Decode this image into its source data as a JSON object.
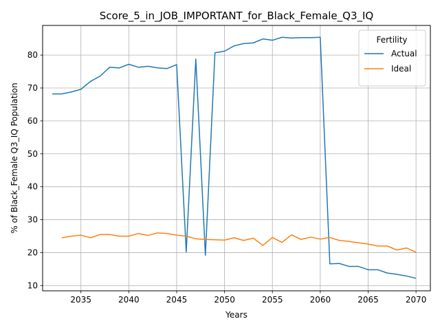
{
  "chart_data": {
    "type": "line",
    "title": "Score_5_in_JOB_IMPORTANT_for_Black_Female_Q3_IQ",
    "xlabel": "Years",
    "ylabel": "% of Black_Female Q3_IQ Population",
    "xlim": [
      2031,
      2071.5
    ],
    "ylim": [
      8.4,
      89.0
    ],
    "xticks": [
      2035,
      2040,
      2045,
      2050,
      2055,
      2060,
      2065,
      2070
    ],
    "yticks": [
      10,
      20,
      30,
      40,
      50,
      60,
      70,
      80
    ],
    "grid": true,
    "legend": {
      "title": "Fertility",
      "placement": "top-right"
    },
    "series": [
      {
        "name": "Actual",
        "color": "#1f77b4",
        "x": [
          2032,
          2033,
          2034,
          2035,
          2036,
          2037,
          2038,
          2039,
          2040,
          2041,
          2042,
          2043,
          2044,
          2045,
          2046,
          2047,
          2048,
          2049,
          2050,
          2051,
          2052,
          2053,
          2054,
          2055,
          2056,
          2057,
          2058,
          2059,
          2060,
          2061,
          2062,
          2063,
          2064,
          2065,
          2066,
          2067,
          2068,
          2069,
          2070
        ],
        "y": [
          68.2,
          68.2,
          68.8,
          69.6,
          72.0,
          73.6,
          76.3,
          76.1,
          77.2,
          76.3,
          76.6,
          76.1,
          75.9,
          77.1,
          20.2,
          78.8,
          19.2,
          80.7,
          81.2,
          82.8,
          83.5,
          83.7,
          84.9,
          84.5,
          85.4,
          85.2,
          85.3,
          85.3,
          85.4,
          16.6,
          16.7,
          15.8,
          15.8,
          14.8,
          14.8,
          13.8,
          13.4,
          12.9,
          12.2
        ]
      },
      {
        "name": "Ideal",
        "color": "#ff7f0e",
        "x": [
          2033,
          2034,
          2035,
          2036,
          2037,
          2038,
          2039,
          2040,
          2041,
          2042,
          2043,
          2044,
          2045,
          2046,
          2047,
          2048,
          2049,
          2050,
          2051,
          2052,
          2053,
          2054,
          2055,
          2056,
          2057,
          2058,
          2059,
          2060,
          2061,
          2062,
          2063,
          2064,
          2065,
          2066,
          2067,
          2068,
          2069,
          2070
        ],
        "y": [
          24.5,
          25.0,
          25.3,
          24.5,
          25.5,
          25.5,
          25.0,
          25.0,
          25.8,
          25.2,
          26.0,
          25.8,
          25.3,
          25.0,
          24.2,
          24.0,
          23.9,
          23.8,
          24.5,
          23.7,
          24.4,
          22.2,
          24.6,
          23.1,
          25.4,
          24.0,
          24.7,
          24.1,
          24.6,
          23.7,
          23.4,
          23.0,
          22.6,
          22.0,
          22.0,
          20.8,
          21.4,
          20.1
        ]
      }
    ]
  }
}
